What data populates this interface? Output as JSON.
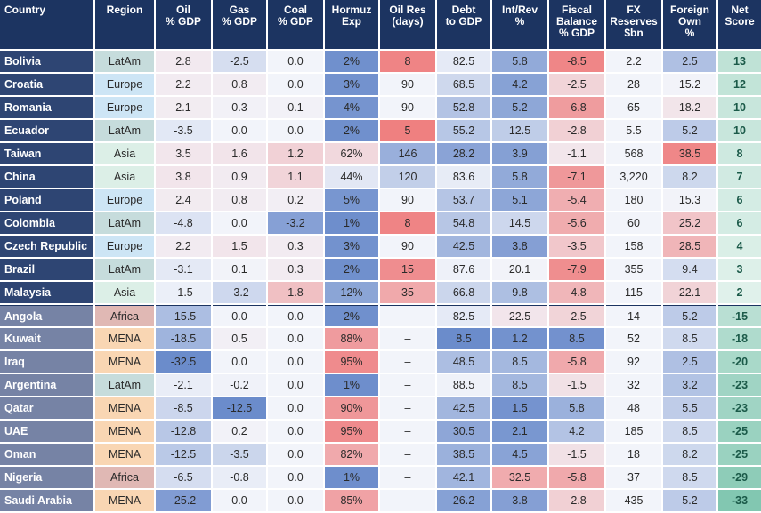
{
  "table": {
    "header": [
      "Country",
      "Region",
      "Oil\n% GDP",
      "Gas\n% GDP",
      "Coal\n% GDP",
      "Hormuz\nExp",
      "Oil Res\n(days)",
      "Debt\nto GDP",
      "Int/Rev\n%",
      "Fiscal\nBalance\n% GDP",
      "FX\nReserves\n$bn",
      "Foreign\nOwn\n%",
      "Net\nScore"
    ],
    "rows": [
      [
        "Bolivia",
        "LatAm",
        "2.8",
        "-2.5",
        "0.0",
        "2%",
        "8",
        "82.5",
        "5.8",
        "-8.5",
        "2.2",
        "2.5",
        "13"
      ],
      [
        "Croatia",
        "Europe",
        "2.2",
        "0.8",
        "0.0",
        "3%",
        "90",
        "68.5",
        "4.2",
        "-2.5",
        "28",
        "15.2",
        "12"
      ],
      [
        "Romania",
        "Europe",
        "2.1",
        "0.3",
        "0.1",
        "4%",
        "90",
        "52.8",
        "5.2",
        "-6.8",
        "65",
        "18.2",
        "10"
      ],
      [
        "Ecuador",
        "LatAm",
        "-3.5",
        "0.0",
        "0.0",
        "2%",
        "5",
        "55.2",
        "12.5",
        "-2.8",
        "5.5",
        "5.2",
        "10"
      ],
      [
        "Taiwan",
        "Asia",
        "3.5",
        "1.6",
        "1.2",
        "62%",
        "146",
        "28.2",
        "3.9",
        "-1.1",
        "568",
        "38.5",
        "8"
      ],
      [
        "China",
        "Asia",
        "3.8",
        "0.9",
        "1.1",
        "44%",
        "120",
        "83.6",
        "5.8",
        "-7.1",
        "3,220",
        "8.2",
        "7"
      ],
      [
        "Poland",
        "Europe",
        "2.4",
        "0.8",
        "0.2",
        "5%",
        "90",
        "53.7",
        "5.1",
        "-5.4",
        "180",
        "15.3",
        "6"
      ],
      [
        "Colombia",
        "LatAm",
        "-4.8",
        "0.0",
        "-3.2",
        "1%",
        "8",
        "54.8",
        "14.5",
        "-5.6",
        "60",
        "25.2",
        "6"
      ],
      [
        "Czech Republic",
        "Europe",
        "2.2",
        "1.5",
        "0.3",
        "3%",
        "90",
        "42.5",
        "3.8",
        "-3.5",
        "158",
        "28.5",
        "4"
      ],
      [
        "Brazil",
        "LatAm",
        "-3.1",
        "0.1",
        "0.3",
        "2%",
        "15",
        "87.6",
        "20.1",
        "-7.9",
        "355",
        "9.4",
        "3"
      ],
      [
        "Malaysia",
        "Asia",
        "-1.5",
        "-3.2",
        "1.8",
        "12%",
        "35",
        "66.8",
        "9.8",
        "-4.8",
        "115",
        "22.1",
        "2"
      ],
      [
        "Angola",
        "Africa",
        "-15.5",
        "0.0",
        "0.0",
        "2%",
        "–",
        "82.5",
        "22.5",
        "-2.5",
        "14",
        "5.2",
        "-15"
      ],
      [
        "Kuwait",
        "MENA",
        "-18.5",
        "0.5",
        "0.0",
        "88%",
        "–",
        "8.5",
        "1.2",
        "8.5",
        "52",
        "8.5",
        "-18"
      ],
      [
        "Iraq",
        "MENA",
        "-32.5",
        "0.0",
        "0.0",
        "95%",
        "–",
        "48.5",
        "8.5",
        "-5.8",
        "92",
        "2.5",
        "-20"
      ],
      [
        "Argentina",
        "LatAm",
        "-2.1",
        "-0.2",
        "0.0",
        "1%",
        "–",
        "88.5",
        "8.5",
        "-1.5",
        "32",
        "3.2",
        "-23"
      ],
      [
        "Qatar",
        "MENA",
        "-8.5",
        "-12.5",
        "0.0",
        "90%",
        "–",
        "42.5",
        "1.5",
        "5.8",
        "48",
        "5.5",
        "-23"
      ],
      [
        "UAE",
        "MENA",
        "-12.8",
        "0.2",
        "0.0",
        "95%",
        "–",
        "30.5",
        "2.1",
        "4.2",
        "185",
        "8.5",
        "-25"
      ],
      [
        "Oman",
        "MENA",
        "-12.5",
        "-3.5",
        "0.0",
        "82%",
        "–",
        "38.5",
        "4.5",
        "-1.5",
        "18",
        "8.2",
        "-25"
      ],
      [
        "Nigeria",
        "Africa",
        "-6.5",
        "-0.8",
        "0.0",
        "1%",
        "–",
        "42.1",
        "32.5",
        "-5.8",
        "37",
        "8.5",
        "-29"
      ],
      [
        "Saudi Arabia",
        "MENA",
        "-25.2",
        "0.0",
        "0.0",
        "85%",
        "–",
        "26.2",
        "3.8",
        "-2.8",
        "435",
        "5.2",
        "-33"
      ]
    ]
  }
}
